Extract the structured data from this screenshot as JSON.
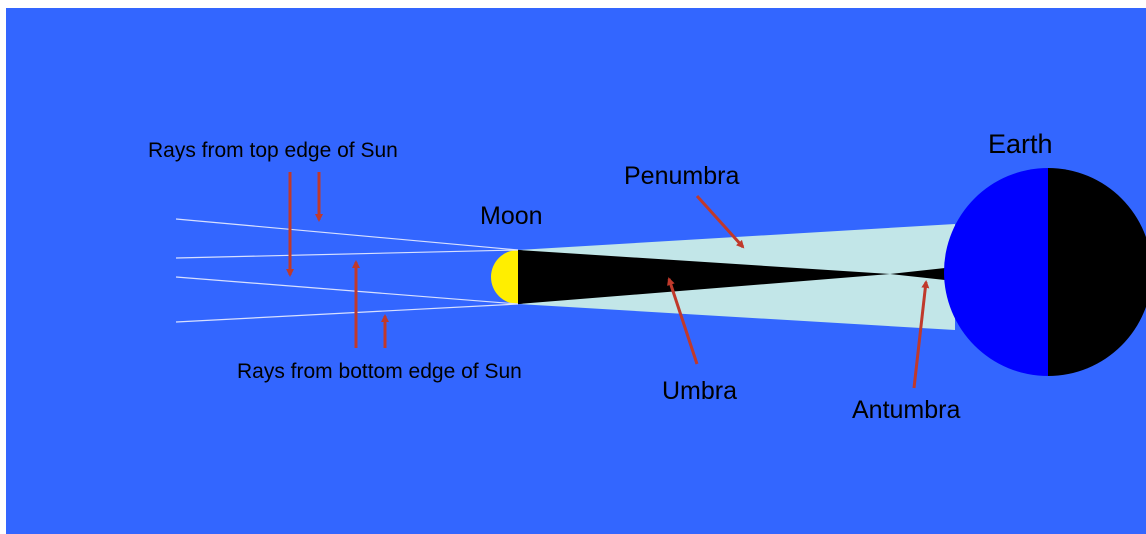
{
  "labels": {
    "rays_top": "Rays from top edge of Sun",
    "rays_bottom": "Rays from bottom edge of Sun",
    "moon": "Moon",
    "earth": "Earth",
    "penumbra": "Penumbra",
    "umbra": "Umbra",
    "antumbra": "Antumbra"
  }
}
